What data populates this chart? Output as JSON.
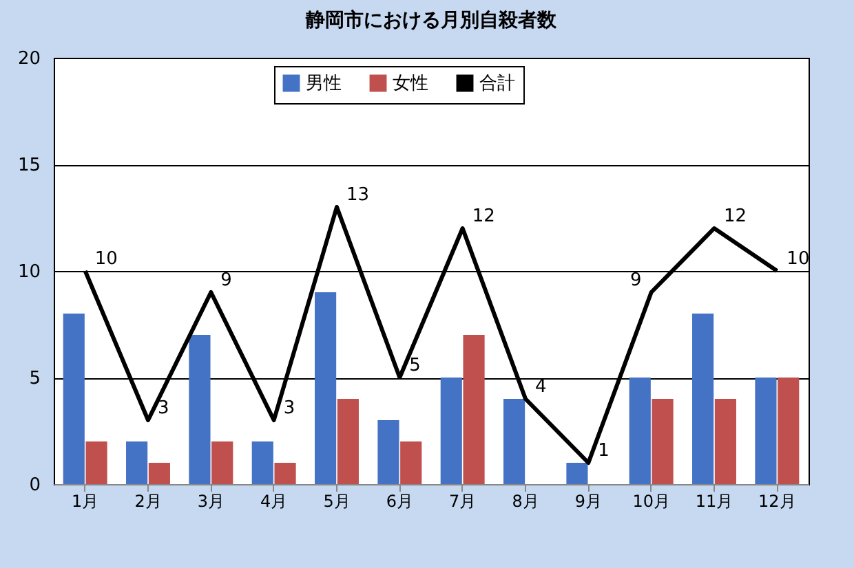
{
  "chart_data": {
    "type": "bar",
    "title": "静岡市における月別自殺者数",
    "categories": [
      "1月",
      "2月",
      "3月",
      "4月",
      "5月",
      "6月",
      "7月",
      "8月",
      "9月",
      "10月",
      "11月",
      "12月"
    ],
    "series": [
      {
        "name": "男性",
        "color": "#4472c4",
        "values": [
          8,
          2,
          7,
          2,
          9,
          3,
          5,
          4,
          1,
          5,
          8,
          5
        ]
      },
      {
        "name": "女性",
        "color": "#c0504d",
        "values": [
          2,
          1,
          2,
          1,
          4,
          2,
          7,
          0,
          0,
          4,
          4,
          5
        ]
      },
      {
        "name": "合計",
        "type": "line",
        "color": "#000000",
        "values": [
          10,
          3,
          9,
          3,
          13,
          5,
          12,
          4,
          1,
          9,
          12,
          10
        ],
        "value_labels": [
          "10",
          "3",
          "9",
          "3",
          "13",
          "5",
          "12",
          "4",
          "1",
          "9",
          "12",
          "10"
        ]
      }
    ],
    "ylim": [
      0,
      20
    ],
    "yticks": [
      0,
      5,
      10,
      15,
      20
    ],
    "grid": "y",
    "legend": "top"
  }
}
